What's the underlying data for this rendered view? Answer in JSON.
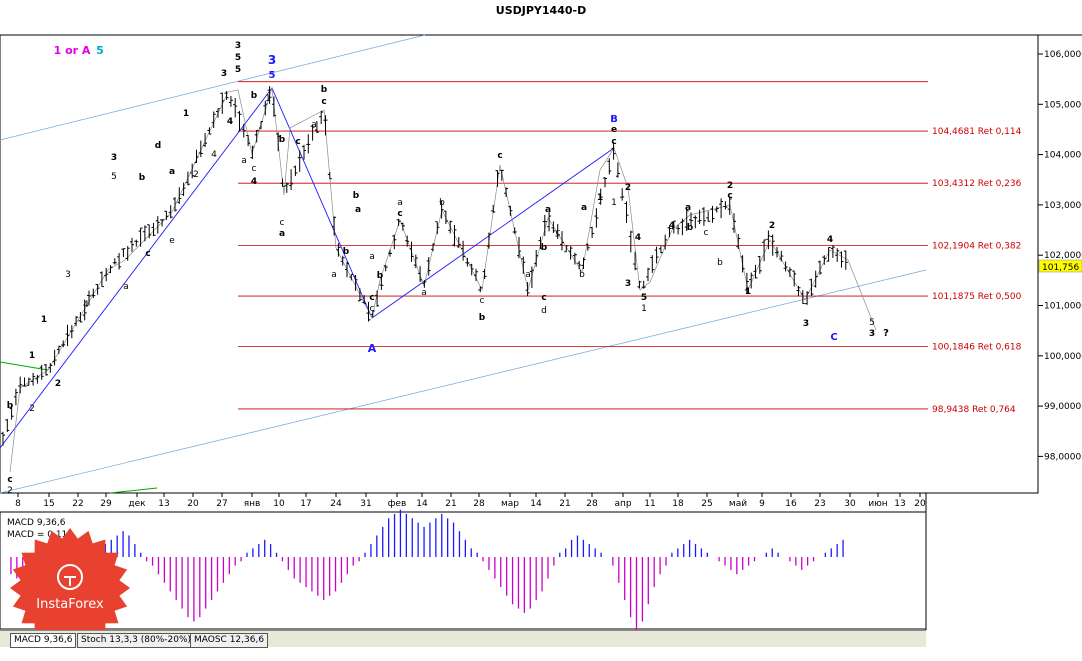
{
  "window": {
    "title": "USDJPY1440-D"
  },
  "colors": {
    "fib": "#cc0000",
    "channel": "#6fa8dc",
    "wave": "#1a1aff",
    "macd_hist": "#cc00cc",
    "price_tag_bg": "#ffff00"
  },
  "chart_data": {
    "type": "candlestick",
    "symbol": "USDJPY",
    "timeframe": "D1",
    "ylim": [
      97.3,
      106.4
    ],
    "y_ticks": [
      "106,0000",
      "105,0000",
      "104,0000",
      "103,0000",
      "102,0000",
      "101,0000",
      "100,0000",
      "99,0000",
      "98,0000"
    ],
    "y_tick_values": [
      106,
      105,
      104,
      103,
      102,
      101,
      100,
      99,
      98
    ],
    "current_price": "101,756",
    "current_price_value": 101.756,
    "x_ticks": [
      "8",
      "15",
      "22",
      "29",
      "дек",
      "13",
      "20",
      "27",
      "янв",
      "10",
      "17",
      "24",
      "31",
      "фев",
      "14",
      "21",
      "28",
      "мар",
      "14",
      "21",
      "28",
      "апр",
      "11",
      "18",
      "25",
      "май",
      "9",
      "16",
      "23",
      "30",
      "июн",
      "13",
      "20"
    ],
    "fib_levels": [
      {
        "value": 104.4681,
        "label": "104,4681 Ret 0,114"
      },
      {
        "value": 103.4312,
        "label": "103,4312 Ret 0,236"
      },
      {
        "value": 102.1904,
        "label": "102,1904 Ret 0,382"
      },
      {
        "value": 101.1875,
        "label": "101,1875 Ret 0,500"
      },
      {
        "value": 100.1846,
        "label": "100,1846 Ret 0,618"
      },
      {
        "value": 98.9438,
        "label": "98,9438 Ret 0,764"
      }
    ],
    "top_level": 105.45,
    "wave_labels": [
      {
        "t": "1 or A",
        "c": "#e600e6"
      },
      {
        "t": "5",
        "c": "#00aacc"
      },
      {
        "t": "3",
        "c": "#1a1aff"
      },
      {
        "t": "5",
        "c": "#1a1aff"
      },
      {
        "t": "B",
        "c": "#1a1aff"
      },
      {
        "t": "A",
        "c": "#1a1aff"
      },
      {
        "t": "C",
        "c": "#1a1aff"
      },
      {
        "t": "?",
        "c": "#000000"
      }
    ],
    "small_labels": [
      "1",
      "2",
      "3",
      "4",
      "5",
      "a",
      "b",
      "c",
      "d",
      "e"
    ],
    "macd": {
      "label": "MACD 9,36,6",
      "signal_label": "MACD = 0,11",
      "histogram": [
        -4,
        -5,
        -6,
        -7,
        -8,
        -9,
        -9,
        -8,
        -7,
        -6,
        -5,
        -4,
        -3,
        -2,
        0,
        2,
        3,
        4,
        5,
        6,
        5,
        3,
        1,
        -1,
        -2,
        -4,
        -6,
        -8,
        -10,
        -12,
        -14,
        -15,
        -14,
        -12,
        -10,
        -8,
        -6,
        -4,
        -2,
        -1,
        1,
        2,
        3,
        4,
        3,
        1,
        -1,
        -3,
        -5,
        -6,
        -7,
        -8,
        -9,
        -10,
        -9,
        -8,
        -6,
        -4,
        -2,
        -1,
        1,
        3,
        5,
        7,
        9,
        10,
        11,
        10,
        9,
        8,
        7,
        8,
        9,
        10,
        9,
        8,
        6,
        4,
        2,
        1,
        -1,
        -3,
        -5,
        -7,
        -9,
        -11,
        -12,
        -13,
        -12,
        -10,
        -8,
        -5,
        -2,
        1,
        2,
        4,
        5,
        4,
        3,
        2,
        1,
        0,
        -2,
        -6,
        -10,
        -14,
        -17,
        -15,
        -11,
        -7,
        -4,
        -2,
        1,
        2,
        3,
        4,
        3,
        2,
        1,
        0,
        -1,
        -2,
        -3,
        -4,
        -3,
        -2,
        -1,
        0,
        1,
        2,
        1,
        0,
        -1,
        -2,
        -3,
        -2,
        -1,
        0,
        1,
        2,
        3,
        4
      ]
    }
  },
  "tabs": [
    {
      "label": "MACD 9,36,6"
    },
    {
      "label": "Stoch 13,3,3 (80%-20%)"
    },
    {
      "label": "MAOSC 12,36,6"
    }
  ],
  "logo": {
    "text": "InstaForex"
  }
}
